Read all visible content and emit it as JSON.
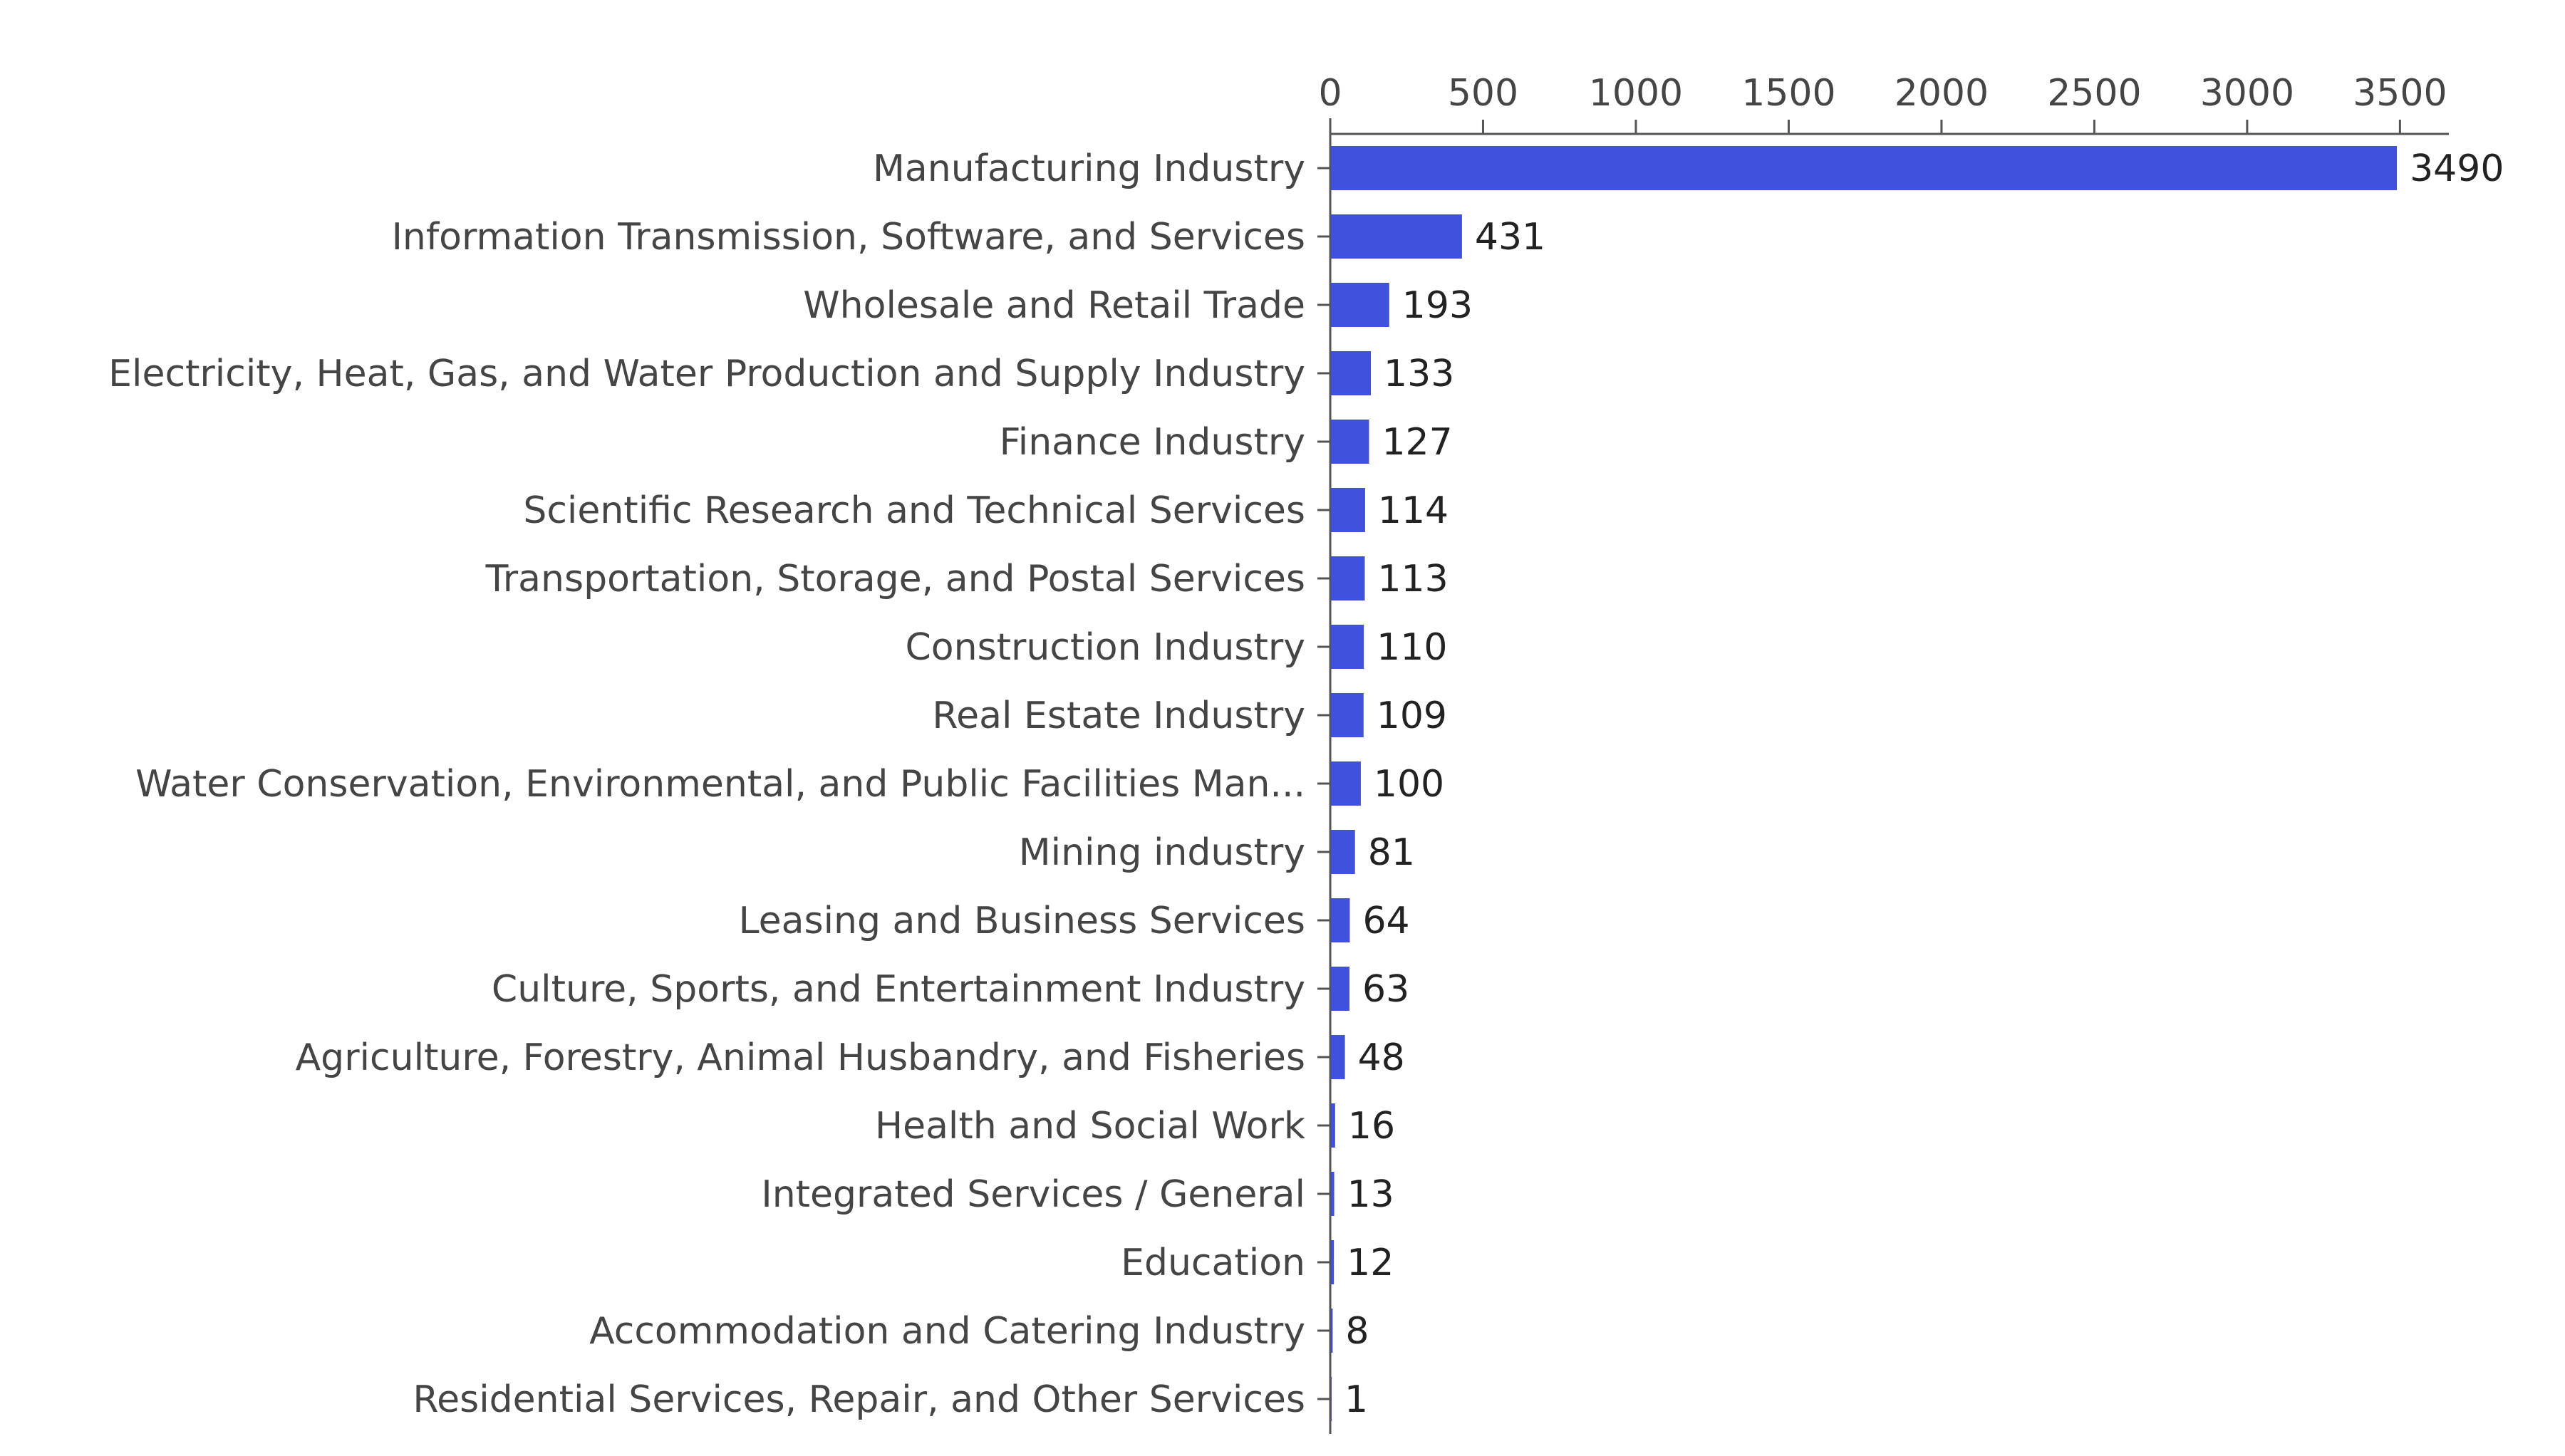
{
  "chart_data": {
    "type": "bar",
    "orientation": "horizontal",
    "title": "",
    "xlabel": "",
    "ylabel": "",
    "xlim": [
      0,
      3660
    ],
    "x_ticks": [
      0,
      500,
      1000,
      1500,
      2000,
      2500,
      3000,
      3500
    ],
    "x_axis_position": "top",
    "grid": false,
    "bar_color": "#3f51dd",
    "categories": [
      "Manufacturing Industry",
      "Information Transmission, Software, and Services",
      "Wholesale and Retail Trade",
      "Electricity, Heat, Gas, and Water Production and Supply Industry",
      "Finance Industry",
      "Scientific Research and Technical Services",
      "Transportation, Storage, and Postal Services",
      "Construction Industry",
      "Real Estate Industry",
      "Water Conservation, Environmental, and Public Facilities Man...",
      "Mining industry",
      "Leasing and Business Services",
      "Culture, Sports, and Entertainment Industry",
      "Agriculture, Forestry, Animal Husbandry, and Fisheries",
      "Health and Social Work",
      "Integrated Services / General",
      "Education",
      "Accommodation and Catering Industry",
      "Residential Services, Repair, and Other Services"
    ],
    "values": [
      3490,
      431,
      193,
      133,
      127,
      114,
      113,
      110,
      109,
      100,
      81,
      64,
      63,
      48,
      16,
      13,
      12,
      8,
      1
    ]
  }
}
